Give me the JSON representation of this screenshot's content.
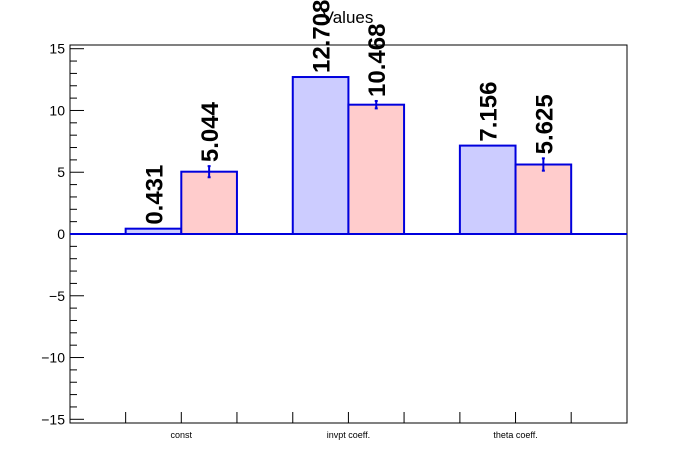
{
  "chart_data": {
    "type": "bar",
    "title": "Values",
    "categories": [
      "const",
      "invpt coeff.",
      "theta coeff."
    ],
    "series": [
      {
        "values": [
          0.431,
          12.708,
          7.156
        ],
        "errors": [
          0.0,
          0.0,
          0.0
        ],
        "labels": [
          "0.431",
          "12.708",
          "7.156"
        ],
        "fill": "#ccccff",
        "stroke": "#0000dd"
      },
      {
        "values": [
          5.044,
          10.468,
          5.625
        ],
        "errors": [
          0.45,
          0.3,
          0.5
        ],
        "labels": [
          "5.044",
          "10.468",
          "5.625"
        ],
        "fill": "#ffcccc",
        "stroke": "#0000dd"
      }
    ],
    "ylim": [
      -15.3,
      15.3
    ],
    "yticks": [
      -15,
      -10,
      -5,
      0,
      5,
      10,
      15
    ],
    "ytick_labels": [
      "−15",
      "−10",
      "−5",
      "0",
      "5",
      "10",
      "15"
    ],
    "grid": false,
    "legend": "none",
    "xlabel": "",
    "ylabel": ""
  }
}
